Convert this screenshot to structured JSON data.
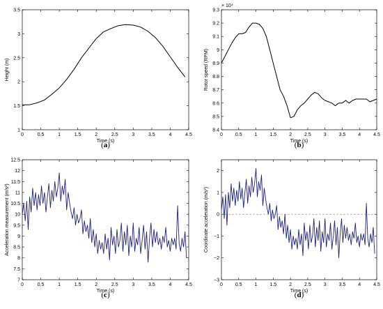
{
  "chart_data": [
    {
      "id": "a",
      "type": "line",
      "caption_letter": "a",
      "xlabel": "Time (s)",
      "ylabel": "Height (m)",
      "xlim": [
        0,
        4.5
      ],
      "ylim": [
        1,
        3.5
      ],
      "xticks": [
        0,
        0.5,
        1,
        1.5,
        2,
        2.5,
        3,
        3.5,
        4,
        4.5
      ],
      "xtick_labels": [
        "0",
        "0.5",
        "1",
        "1.5",
        "2",
        "2.5",
        "3",
        "3.5",
        "4",
        "4.5"
      ],
      "yticks": [
        1,
        1.5,
        2,
        2.5,
        3,
        3.5
      ],
      "ytick_labels": [
        "1",
        "1.5",
        "2",
        "2.5",
        "3",
        "3.5"
      ],
      "exponent_label": "",
      "color": "#000000",
      "series": [
        {
          "x": [
            0,
            0.2,
            0.4,
            0.6,
            0.8,
            1.0,
            1.2,
            1.4,
            1.6,
            1.8,
            2.0,
            2.2,
            2.4,
            2.6,
            2.8,
            3.0,
            3.2,
            3.4,
            3.6,
            3.8,
            4.0,
            4.2,
            4.4
          ],
          "y": [
            1.52,
            1.52,
            1.56,
            1.62,
            1.74,
            1.87,
            2.05,
            2.26,
            2.5,
            2.7,
            2.9,
            3.04,
            3.11,
            3.17,
            3.19,
            3.18,
            3.14,
            3.05,
            2.92,
            2.74,
            2.52,
            2.3,
            2.1
          ]
        }
      ],
      "reference_line": null
    },
    {
      "id": "b",
      "type": "line",
      "caption_letter": "b",
      "xlabel": "Time (s)",
      "ylabel": "Rotor speed (RPM)",
      "xlim": [
        0,
        4.5
      ],
      "ylim": [
        8.4,
        9.3
      ],
      "xticks": [
        0,
        0.5,
        1,
        1.5,
        2,
        2.5,
        3,
        3.5,
        4,
        4.5
      ],
      "xtick_labels": [
        "0",
        "0.5",
        "1",
        "1.5",
        "2",
        "2.5",
        "3",
        "3.5",
        "4",
        "4.5"
      ],
      "yticks": [
        8.4,
        8.5,
        8.6,
        8.7,
        8.8,
        8.9,
        9.0,
        9.1,
        9.2,
        9.3
      ],
      "ytick_labels": [
        "8.4",
        "8.5",
        "8.6",
        "8.7",
        "8.8",
        "8.9",
        "9",
        "9.1",
        "9.2",
        "9.3"
      ],
      "exponent_label": "× 10⁴",
      "color": "#000000",
      "series": [
        {
          "x": [
            0,
            0.1,
            0.2,
            0.3,
            0.4,
            0.5,
            0.6,
            0.7,
            0.8,
            0.9,
            1.0,
            1.1,
            1.2,
            1.3,
            1.4,
            1.5,
            1.6,
            1.7,
            1.8,
            1.9,
            2.0,
            2.1,
            2.2,
            2.3,
            2.4,
            2.5,
            2.6,
            2.7,
            2.8,
            2.9,
            3.0,
            3.1,
            3.2,
            3.3,
            3.4,
            3.5,
            3.6,
            3.7,
            3.8,
            3.9,
            4.0,
            4.1,
            4.2,
            4.3,
            4.4,
            4.5
          ],
          "y": [
            8.9,
            8.95,
            9.0,
            9.05,
            9.09,
            9.12,
            9.12,
            9.13,
            9.17,
            9.2,
            9.2,
            9.19,
            9.16,
            9.1,
            9.0,
            8.9,
            8.8,
            8.7,
            8.65,
            8.58,
            8.49,
            8.5,
            8.55,
            8.58,
            8.6,
            8.63,
            8.66,
            8.68,
            8.67,
            8.64,
            8.62,
            8.61,
            8.6,
            8.58,
            8.6,
            8.6,
            8.62,
            8.6,
            8.62,
            8.63,
            8.63,
            8.63,
            8.63,
            8.61,
            8.62,
            8.63
          ]
        }
      ],
      "reference_line": null
    },
    {
      "id": "c",
      "type": "line",
      "caption_letter": "c",
      "xlabel": "Time (s)",
      "ylabel": "Acceleration measurement (m/s²)",
      "xlim": [
        0,
        4.5
      ],
      "ylim": [
        7,
        12.5
      ],
      "xticks": [
        0,
        0.5,
        1,
        1.5,
        2,
        2.5,
        3,
        3.5,
        4,
        4.5
      ],
      "xtick_labels": [
        "0",
        "0.5",
        "1",
        "1.5",
        "2",
        "2.5",
        "3",
        "3.5",
        "4",
        "4.5"
      ],
      "yticks": [
        7,
        7.5,
        8,
        8.5,
        9,
        9.5,
        10,
        10.5,
        11,
        11.5,
        12,
        12.5
      ],
      "ytick_labels": [
        "7",
        "7.5",
        "8",
        "8.5",
        "9",
        "9.5",
        "10",
        "10.5",
        "11",
        "11.5",
        "12",
        "12.5"
      ],
      "exponent_label": "",
      "color": "#1f1f7a",
      "series": [
        {
          "x": [
            0,
            0.04,
            0.08,
            0.12,
            0.16,
            0.2,
            0.24,
            0.28,
            0.32,
            0.36,
            0.4,
            0.44,
            0.48,
            0.52,
            0.56,
            0.6,
            0.64,
            0.68,
            0.72,
            0.76,
            0.8,
            0.84,
            0.88,
            0.92,
            0.96,
            1.0,
            1.04,
            1.08,
            1.12,
            1.16,
            1.2,
            1.24,
            1.28,
            1.32,
            1.36,
            1.4,
            1.44,
            1.48,
            1.52,
            1.56,
            1.6,
            1.64,
            1.68,
            1.72,
            1.76,
            1.8,
            1.84,
            1.88,
            1.92,
            1.96,
            2.0,
            2.04,
            2.08,
            2.12,
            2.16,
            2.2,
            2.24,
            2.28,
            2.32,
            2.36,
            2.4,
            2.44,
            2.48,
            2.52,
            2.56,
            2.6,
            2.64,
            2.68,
            2.72,
            2.76,
            2.8,
            2.84,
            2.88,
            2.92,
            2.96,
            3.0,
            3.04,
            3.08,
            3.12,
            3.16,
            3.2,
            3.24,
            3.28,
            3.32,
            3.36,
            3.4,
            3.44,
            3.48,
            3.52,
            3.56,
            3.6,
            3.64,
            3.68,
            3.72,
            3.76,
            3.8,
            3.84,
            3.88,
            3.92,
            3.96,
            4.0,
            4.04,
            4.08,
            4.12,
            4.16,
            4.2,
            4.24,
            4.28,
            4.32,
            4.36,
            4.4,
            4.44
          ],
          "y": [
            10.0,
            10.5,
            9.7,
            10.6,
            9.3,
            10.8,
            10.1,
            11.2,
            10.4,
            11.0,
            10.2,
            10.9,
            10.4,
            11.3,
            10.5,
            11.0,
            10.1,
            10.8,
            11.4,
            10.3,
            11.1,
            10.6,
            11.5,
            10.8,
            11.2,
            11.9,
            10.6,
            11.3,
            10.9,
            11.6,
            10.2,
            11.0,
            10.5,
            10.1,
            9.8,
            10.3,
            9.5,
            10.0,
            9.6,
            9.8,
            10.2,
            9.1,
            9.7,
            9.2,
            9.5,
            8.9,
            9.8,
            8.7,
            9.3,
            8.5,
            9.1,
            8.2,
            8.8,
            8.4,
            8.7,
            8.2,
            9.1,
            8.4,
            8.9,
            7.9,
            9.4,
            8.6,
            9.0,
            8.2,
            9.3,
            8.5,
            8.8,
            9.6,
            8.3,
            9.2,
            8.6,
            9.5,
            8.1,
            9.0,
            8.5,
            9.6,
            8.3,
            8.9,
            8.6,
            9.4,
            8.2,
            8.8,
            9.5,
            8.4,
            9.2,
            7.8,
            8.9,
            9.6,
            8.5,
            9.3,
            8.7,
            9.2,
            8.6,
            8.9,
            8.4,
            9.0,
            8.7,
            9.4,
            8.5,
            8.8,
            8.3,
            8.9,
            8.6,
            8.9,
            8.4,
            10.4,
            8.7,
            8.3,
            8.9,
            8.5,
            9.2,
            8.0
          ]
        }
      ],
      "reference_line": null
    },
    {
      "id": "d",
      "type": "line",
      "caption_letter": "d",
      "xlabel": "Time (s)",
      "ylabel": "Coordinate acceleration (m/s²)",
      "xlim": [
        0,
        4.5
      ],
      "ylim": [
        -3,
        2.5
      ],
      "xticks": [
        0,
        0.5,
        1,
        1.5,
        2,
        2.5,
        3,
        3.5,
        4,
        4.5
      ],
      "xtick_labels": [
        "0",
        "0.5",
        "1",
        "1.5",
        "2",
        "2.5",
        "3",
        "3.5",
        "4",
        "4.5"
      ],
      "yticks": [
        -3,
        -2,
        -1,
        0,
        1,
        2
      ],
      "ytick_labels": [
        "−3",
        "−2",
        "−1",
        "0",
        "1",
        "2"
      ],
      "exponent_label": "",
      "color": "#1f1f7a",
      "series": [
        {
          "x": [
            0,
            0.04,
            0.08,
            0.12,
            0.16,
            0.2,
            0.24,
            0.28,
            0.32,
            0.36,
            0.4,
            0.44,
            0.48,
            0.52,
            0.56,
            0.6,
            0.64,
            0.68,
            0.72,
            0.76,
            0.8,
            0.84,
            0.88,
            0.92,
            0.96,
            1.0,
            1.04,
            1.08,
            1.12,
            1.16,
            1.2,
            1.24,
            1.28,
            1.32,
            1.36,
            1.4,
            1.44,
            1.48,
            1.52,
            1.56,
            1.6,
            1.64,
            1.68,
            1.72,
            1.76,
            1.8,
            1.84,
            1.88,
            1.92,
            1.96,
            2.0,
            2.04,
            2.08,
            2.12,
            2.16,
            2.2,
            2.24,
            2.28,
            2.32,
            2.36,
            2.4,
            2.44,
            2.48,
            2.52,
            2.56,
            2.6,
            2.64,
            2.68,
            2.72,
            2.76,
            2.8,
            2.84,
            2.88,
            2.92,
            2.96,
            3.0,
            3.04,
            3.08,
            3.12,
            3.16,
            3.2,
            3.24,
            3.28,
            3.32,
            3.36,
            3.4,
            3.44,
            3.48,
            3.52,
            3.56,
            3.6,
            3.64,
            3.68,
            3.72,
            3.76,
            3.8,
            3.84,
            3.88,
            3.92,
            3.96,
            4.0,
            4.04,
            4.08,
            4.12,
            4.16,
            4.2,
            4.24,
            4.28,
            4.32,
            4.36,
            4.4,
            4.44
          ],
          "y": [
            0.2,
            0.8,
            -0.2,
            0.9,
            -0.5,
            1.0,
            0.3,
            1.4,
            0.6,
            1.2,
            0.4,
            1.1,
            0.6,
            1.5,
            0.7,
            1.2,
            0.3,
            1.0,
            1.6,
            0.5,
            1.3,
            0.8,
            1.7,
            1.0,
            1.4,
            2.1,
            0.8,
            1.5,
            1.1,
            1.8,
            0.4,
            1.2,
            0.7,
            0.3,
            0.0,
            0.5,
            -0.3,
            0.2,
            -0.2,
            0.0,
            0.4,
            -0.7,
            -0.1,
            -0.6,
            -0.3,
            -0.9,
            0.0,
            -1.1,
            -0.5,
            -1.3,
            -0.7,
            -1.6,
            -1.0,
            -1.4,
            -1.1,
            -1.6,
            -0.7,
            -1.4,
            -0.9,
            -1.9,
            -0.4,
            -1.2,
            -0.8,
            -1.6,
            -0.5,
            -1.3,
            -1.0,
            -0.2,
            -1.5,
            -0.6,
            -1.2,
            -0.3,
            -1.7,
            -0.8,
            -1.3,
            -0.2,
            -1.5,
            -0.9,
            -1.2,
            -0.4,
            -1.6,
            -1.0,
            -0.3,
            -1.4,
            -0.6,
            -2.0,
            -0.9,
            -0.2,
            -1.3,
            -0.5,
            -1.1,
            -0.6,
            -1.2,
            -0.9,
            -1.4,
            -0.8,
            -1.1,
            -0.4,
            -1.3,
            -1.0,
            -1.5,
            -0.9,
            -1.2,
            -0.9,
            -1.4,
            0.5,
            -1.1,
            -1.5,
            -0.9,
            -1.3,
            -0.6,
            -1.8
          ]
        }
      ],
      "reference_line": {
        "y": 0,
        "style": "dashed"
      }
    }
  ]
}
